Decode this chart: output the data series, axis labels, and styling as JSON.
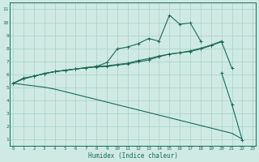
{
  "xlabel": "Humidex (Indice chaleur)",
  "bg_color": "#ceeae3",
  "grid_color": "#aacfc7",
  "line_color": "#1a6b5a",
  "x_values": [
    0,
    1,
    2,
    3,
    4,
    5,
    6,
    7,
    8,
    9,
    10,
    11,
    12,
    13,
    14,
    15,
    16,
    17,
    18,
    19,
    20,
    21,
    22,
    23
  ],
  "series1": [
    5.3,
    5.7,
    5.85,
    6.05,
    6.2,
    6.3,
    6.4,
    6.5,
    6.55,
    6.6,
    6.7,
    6.8,
    6.95,
    7.1,
    7.35,
    7.55,
    7.65,
    7.8,
    8.0,
    8.25,
    8.55,
    null,
    null,
    null
  ],
  "series2": [
    5.3,
    5.65,
    5.85,
    6.05,
    6.2,
    6.3,
    6.4,
    6.5,
    6.6,
    6.9,
    7.95,
    8.1,
    8.35,
    8.75,
    8.55,
    10.55,
    9.85,
    9.95,
    8.55,
    null,
    null,
    null,
    null,
    null
  ],
  "series3": [
    5.3,
    5.65,
    5.85,
    6.05,
    6.2,
    6.3,
    6.4,
    6.5,
    6.6,
    6.65,
    6.75,
    6.85,
    7.05,
    7.2,
    7.4,
    7.55,
    7.65,
    7.75,
    7.95,
    8.2,
    8.5,
    6.45,
    null,
    null
  ],
  "series4": [
    5.3,
    null,
    null,
    null,
    null,
    null,
    null,
    null,
    null,
    null,
    null,
    null,
    null,
    null,
    null,
    null,
    null,
    null,
    null,
    null,
    null,
    null,
    0.9,
    null
  ],
  "series2b": [
    null,
    null,
    null,
    null,
    null,
    null,
    null,
    null,
    null,
    null,
    null,
    null,
    null,
    null,
    null,
    null,
    null,
    null,
    null,
    null,
    6.1,
    3.65,
    0.9,
    null
  ],
  "series_diag": [
    5.3,
    5.2,
    5.1,
    5.0,
    4.85,
    4.65,
    4.45,
    4.25,
    4.05,
    3.85,
    3.65,
    3.45,
    3.25,
    3.05,
    2.85,
    2.65,
    2.45,
    2.25,
    2.05,
    1.85,
    1.65,
    1.45,
    1.0,
    null
  ],
  "xlim": [
    0,
    23
  ],
  "ylim": [
    0.5,
    11.5
  ],
  "xticks": [
    0,
    1,
    2,
    3,
    4,
    5,
    6,
    7,
    8,
    9,
    10,
    11,
    12,
    13,
    14,
    15,
    16,
    17,
    18,
    19,
    20,
    21,
    22,
    23
  ],
  "yticks": [
    1,
    2,
    3,
    4,
    5,
    6,
    7,
    8,
    9,
    10,
    11
  ]
}
